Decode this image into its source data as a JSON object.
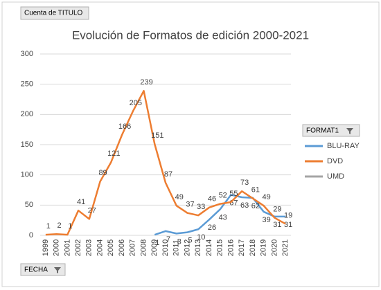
{
  "chart_data": {
    "type": "line",
    "title": "Evolución de Formatos de edición 2000-2021",
    "field_buttons": {
      "values": "Cuenta de TITULO",
      "legend": "FORMAT1",
      "axis": "FECHA"
    },
    "categories": [
      "1999",
      "2000",
      "2001",
      "2002",
      "2003",
      "2004",
      "2005",
      "2006",
      "2007",
      "2008",
      "2009",
      "2010",
      "2011",
      "2012",
      "2013",
      "2014",
      "2015",
      "2016",
      "2017",
      "2018",
      "2019",
      "2020",
      "2021"
    ],
    "series": [
      {
        "name": "BLU-RAY",
        "color": "#5b9bd5",
        "values": [
          null,
          null,
          null,
          null,
          null,
          null,
          null,
          null,
          null,
          null,
          1,
          7,
          3,
          5,
          10,
          26,
          43,
          67,
          63,
          62,
          39,
          31,
          31
        ]
      },
      {
        "name": "DVD",
        "color": "#ed7d31",
        "values": [
          1,
          2,
          1,
          41,
          27,
          89,
          121,
          166,
          205,
          239,
          151,
          87,
          49,
          37,
          33,
          46,
          52,
          55,
          73,
          61,
          49,
          29,
          19
        ]
      },
      {
        "name": "UMD",
        "color": "#a5a5a5",
        "values": [
          null,
          null,
          null,
          null,
          null,
          null,
          null,
          null,
          null,
          null,
          null,
          null,
          null,
          null,
          null,
          null,
          null,
          null,
          null,
          null,
          null,
          null,
          null
        ]
      }
    ],
    "ylim": [
      0,
      300
    ],
    "yticks": [
      0,
      50,
      100,
      150,
      200,
      250,
      300
    ],
    "grid": true
  }
}
